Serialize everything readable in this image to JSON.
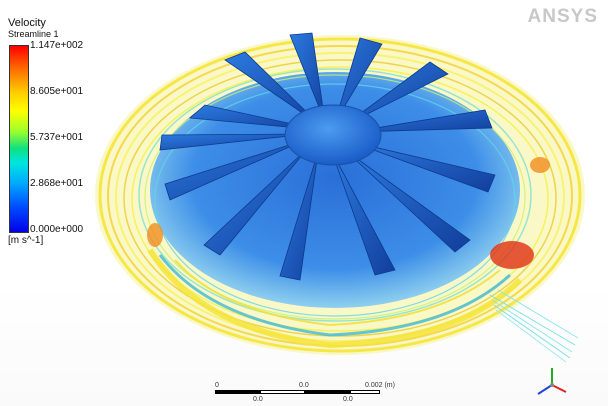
{
  "legend": {
    "title": "Velocity",
    "subtitle": "Streamline 1",
    "ticks": [
      "1.147e+002",
      "8.605e+001",
      "5.737e+001",
      "2.868e+001",
      "0.000e+000"
    ],
    "units": "[m s^-1]"
  },
  "logo": {
    "text": "ANSYS"
  },
  "scale_bar": {
    "top_labels": [
      "0",
      "0.0",
      "0.002 (m)"
    ],
    "bottom_labels": [
      "0.0",
      "0.0"
    ]
  },
  "colors": {
    "blade": "#1f63c9",
    "hub": "#2f7fe0",
    "streamline_yellow": "#f5f042",
    "streamline_orange": "#f08c1e",
    "streamline_red": "#e03010",
    "streamline_cyan": "#5fd7e8"
  },
  "triad_icon": "axis-triad-icon"
}
